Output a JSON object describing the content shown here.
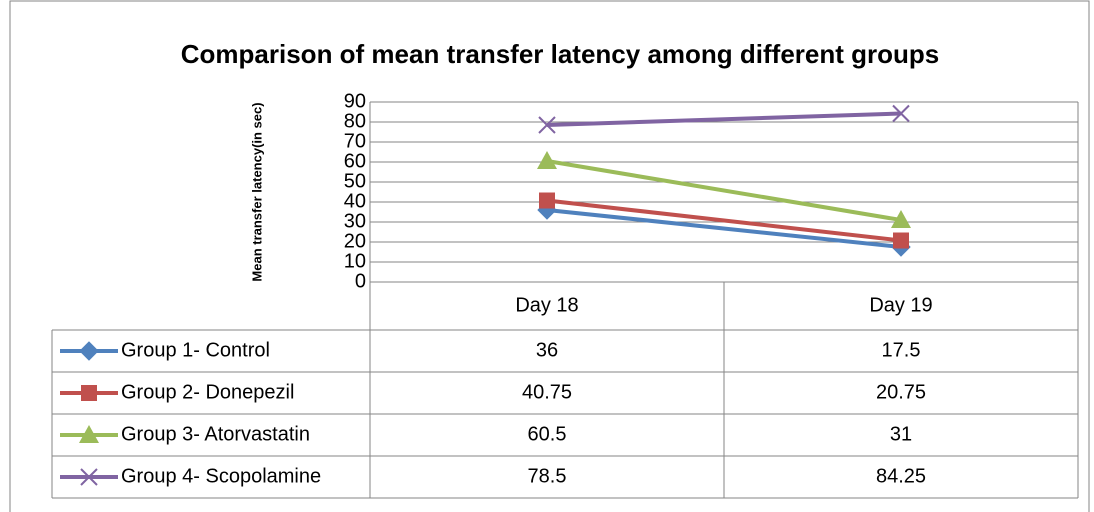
{
  "chart_data": {
    "type": "line",
    "title": "Comparison of mean transfer latency among different groups",
    "y_label": "Mean transfer latency(in sec)",
    "categories": [
      "Day 18",
      "Day 19"
    ],
    "series": [
      {
        "name": "Group 1- Control",
        "color": "#4f81bd",
        "marker": "diamond",
        "values": [
          36,
          17.5
        ]
      },
      {
        "name": "Group 2- Donepezil",
        "color": "#c0504d",
        "marker": "square",
        "values": [
          40.75,
          20.75
        ]
      },
      {
        "name": "Group 3- Atorvastatin",
        "color": "#9bbb59",
        "marker": "triangle",
        "values": [
          60.5,
          31
        ]
      },
      {
        "name": "Group 4- Scopolamine",
        "color": "#8064a2",
        "marker": "x",
        "values": [
          78.5,
          84.25
        ]
      }
    ],
    "ylim": [
      0,
      90
    ],
    "yticks": [
      0,
      10,
      20,
      30,
      40,
      50,
      60,
      70,
      80,
      90
    ],
    "grid": true,
    "data_table": true
  }
}
